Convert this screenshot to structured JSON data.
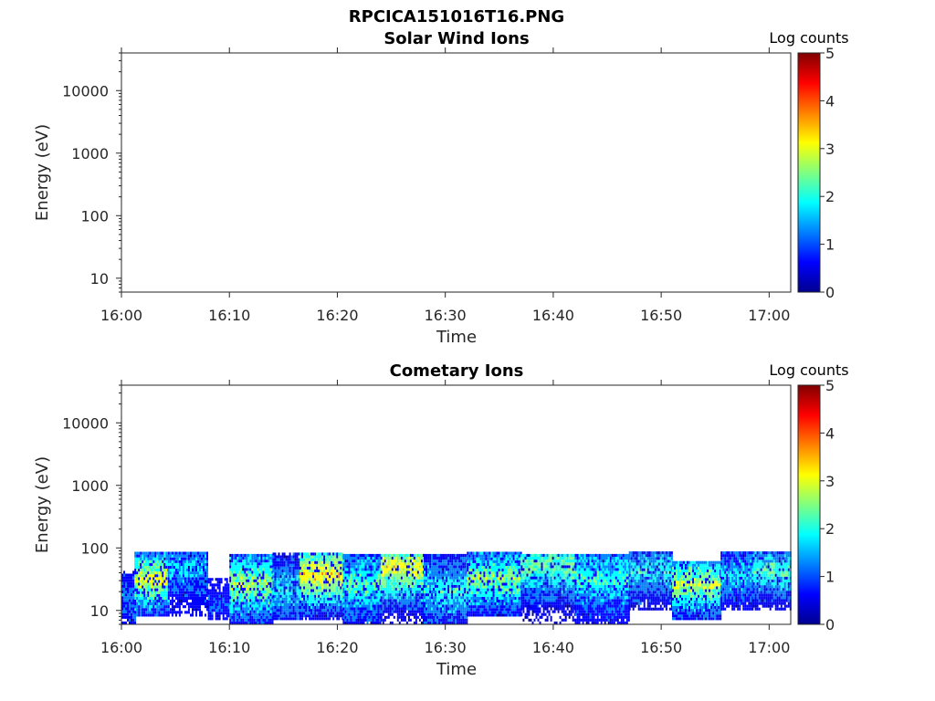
{
  "figure": {
    "suptitle": "RPCICA151016T16.PNG"
  },
  "colormap": [
    "#00008F",
    "#0000FF",
    "#0080FF",
    "#00FFFF",
    "#80FF80",
    "#FFFF00",
    "#FF8000",
    "#FF0000",
    "#800000"
  ],
  "chart_data": [
    {
      "type": "heatmap",
      "title": "Solar Wind Ions",
      "xlabel": "Time",
      "ylabel": "Energy (eV)",
      "yscale": "log",
      "ylim": [
        6,
        40000
      ],
      "xlim": [
        "16:00",
        "17:02"
      ],
      "x_ticks": [
        "16:00",
        "16:10",
        "16:20",
        "16:30",
        "16:40",
        "16:50",
        "17:00"
      ],
      "y_ticks": [
        "10",
        "100",
        "1000",
        "10000"
      ],
      "colorbar": {
        "label": "Log counts",
        "range": [
          0,
          5
        ],
        "ticks": [
          "0",
          "1",
          "2",
          "3",
          "4",
          "5"
        ]
      },
      "bands": []
    },
    {
      "type": "heatmap",
      "title": "Cometary Ions",
      "xlabel": "Time",
      "ylabel": "Energy (eV)",
      "yscale": "log",
      "ylim": [
        6,
        40000
      ],
      "xlim": [
        "16:00",
        "17:02"
      ],
      "x_ticks": [
        "16:00",
        "16:10",
        "16:20",
        "16:30",
        "16:40",
        "16:50",
        "17:00"
      ],
      "y_ticks": [
        "10",
        "100",
        "1000",
        "10000"
      ],
      "colorbar": {
        "label": "Log counts",
        "range": [
          0,
          5
        ],
        "ticks": [
          "0",
          "1",
          "2",
          "3",
          "4",
          "5"
        ]
      },
      "bands": [
        {
          "t0": 0.0,
          "t1": 1.2,
          "emin": 6,
          "emax": 40,
          "peak_e": 15,
          "level": 1.3
        },
        {
          "t0": 1.2,
          "t1": 4.3,
          "emin": 8,
          "emax": 80,
          "peak_e": 30,
          "level": 3.0
        },
        {
          "t0": 4.3,
          "t1": 8.0,
          "emin": 8,
          "emax": 80,
          "peak_e": 45,
          "level": 1.6
        },
        {
          "t0": 8.0,
          "t1": 10.0,
          "emin": 7,
          "emax": 30,
          "peak_e": 12,
          "level": 0.9
        },
        {
          "t0": 10.0,
          "t1": 14.0,
          "emin": 6,
          "emax": 80,
          "peak_e": 25,
          "level": 2.7
        },
        {
          "t0": 14.0,
          "t1": 16.5,
          "emin": 7,
          "emax": 80,
          "peak_e": 20,
          "level": 1.8
        },
        {
          "t0": 16.5,
          "t1": 20.5,
          "emin": 7,
          "emax": 80,
          "peak_e": 35,
          "level": 3.3
        },
        {
          "t0": 20.5,
          "t1": 24.0,
          "emin": 6,
          "emax": 80,
          "peak_e": 25,
          "level": 2.2
        },
        {
          "t0": 24.0,
          "t1": 28.0,
          "emin": 6,
          "emax": 80,
          "peak_e": 45,
          "level": 3.1
        },
        {
          "t0": 28.0,
          "t1": 32.0,
          "emin": 6,
          "emax": 80,
          "peak_e": 20,
          "level": 2.0
        },
        {
          "t0": 32.0,
          "t1": 37.0,
          "emin": 8,
          "emax": 80,
          "peak_e": 30,
          "level": 2.6
        },
        {
          "t0": 37.0,
          "t1": 42.0,
          "emin": 6,
          "emax": 80,
          "peak_e": 50,
          "level": 2.4
        },
        {
          "t0": 42.0,
          "t1": 47.0,
          "emin": 6,
          "emax": 80,
          "peak_e": 30,
          "level": 2.1
        },
        {
          "t0": 47.0,
          "t1": 51.0,
          "emin": 10,
          "emax": 80,
          "peak_e": 40,
          "level": 1.9
        },
        {
          "t0": 51.0,
          "t1": 55.5,
          "emin": 7,
          "emax": 60,
          "peak_e": 25,
          "level": 2.8
        },
        {
          "t0": 55.5,
          "t1": 58.5,
          "emin": 10,
          "emax": 80,
          "peak_e": 35,
          "level": 1.7
        },
        {
          "t0": 58.5,
          "t1": 62.0,
          "emin": 10,
          "emax": 80,
          "peak_e": 40,
          "level": 2.2
        }
      ]
    }
  ]
}
